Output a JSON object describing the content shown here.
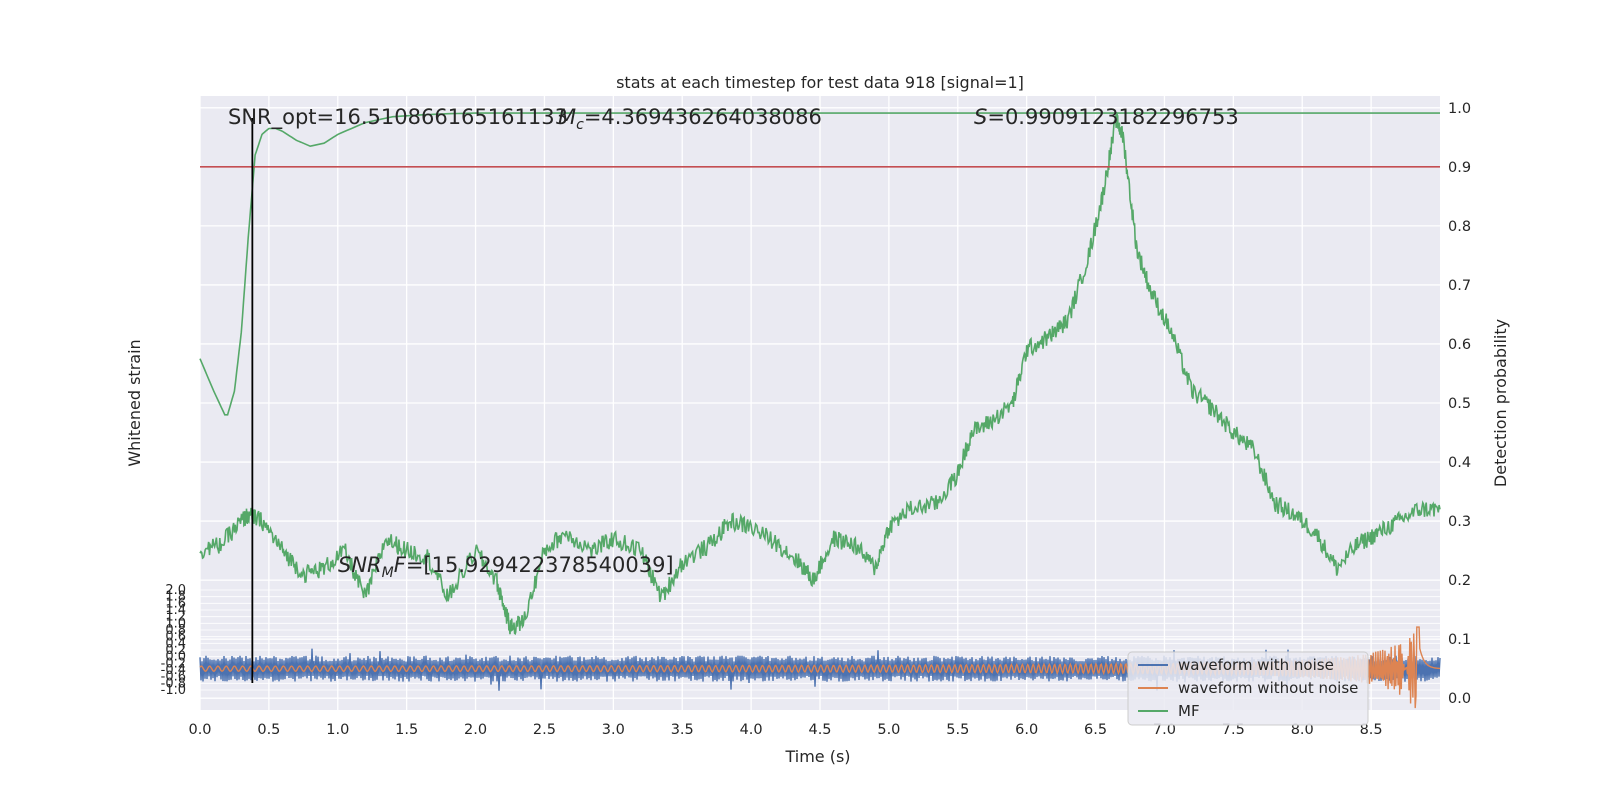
{
  "chart_data": {
    "type": "line",
    "title": "stats at each timestep for test data 918 [signal=1]",
    "xlabel": "Time (s)",
    "ylabel_left": "Whitened strain",
    "ylabel_right": "Detection probability",
    "xlim": [
      0.0,
      9.0
    ],
    "x_ticks": [
      "0.0",
      "0.5",
      "1.0",
      "1.5",
      "2.0",
      "2.5",
      "3.0",
      "3.5",
      "4.0",
      "4.5",
      "5.0",
      "5.5",
      "6.0",
      "6.5",
      "7.0",
      "7.5",
      "8.0",
      "8.5"
    ],
    "y_right_lim": [
      -0.02,
      1.02
    ],
    "y_right_ticks": [
      "0.0",
      "0.1",
      "0.2",
      "0.3",
      "0.4",
      "0.5",
      "0.6",
      "0.7",
      "0.8",
      "0.9",
      "1.0"
    ],
    "y_left_ticks": [
      "2.0",
      "1.8",
      "1.6",
      "1.4",
      "1.2",
      "1.0",
      "0.8",
      "0.6",
      "0.4",
      "0.2",
      "0.0",
      "-0.2",
      "-0.4",
      "-0.6",
      "-0.8",
      "-1.0"
    ],
    "grid": true,
    "annotations": {
      "snr_opt": "SNR_opt=16.510866165161133",
      "mc_symbol": "M",
      "mc_sub": "c",
      "mc_value": "=4.369436264038086",
      "s_symbol": "S",
      "s_value": "=0.9909123182296753",
      "snr_mf_symbol": "SNR",
      "snr_mf_sub": "M",
      "snr_mf_tail": "F",
      "snr_mf_value": "=[15.929422378540039]"
    },
    "threshold": {
      "y": 0.9,
      "color": "#c44e52"
    },
    "marker_line_x": 0.38,
    "legend": {
      "placement": "lower-right",
      "entries": [
        "waveform with noise",
        "waveform without noise",
        "MF"
      ]
    },
    "series": [
      {
        "name": "waveform with noise",
        "color": "#4c72b0",
        "kind": "noise",
        "center": 0.05,
        "amplitude": 0.022
      },
      {
        "name": "waveform without noise",
        "color": "#dd8452",
        "kind": "chirp",
        "center": 0.05,
        "merger_time": 8.85
      },
      {
        "name": "MF",
        "color": "#55a868",
        "kind": "line",
        "x": [
          0.0,
          0.1,
          0.18,
          0.2,
          0.25,
          0.3,
          0.35,
          0.4,
          0.45,
          0.5,
          0.55,
          0.6,
          0.7,
          0.8,
          0.9,
          1.0,
          1.2,
          1.4,
          1.6,
          1.8,
          2.0,
          2.5,
          3.0,
          4.0,
          5.0,
          6.0,
          6.5,
          6.65,
          7.0,
          8.0,
          9.0
        ],
        "y": [
          0.575,
          0.52,
          0.48,
          0.48,
          0.52,
          0.62,
          0.78,
          0.92,
          0.955,
          0.965,
          0.965,
          0.96,
          0.945,
          0.935,
          0.94,
          0.955,
          0.975,
          0.985,
          0.988,
          0.99,
          0.991,
          0.991,
          0.991,
          0.991,
          0.991,
          0.991,
          0.991,
          0.991,
          0.991,
          0.991,
          0.991
        ]
      },
      {
        "name": "detection probability",
        "color": "#55a868",
        "kind": "line",
        "x": [
          0.0,
          0.15,
          0.3,
          0.35,
          0.45,
          0.6,
          0.75,
          0.9,
          1.05,
          1.2,
          1.35,
          1.5,
          1.65,
          1.8,
          2.0,
          2.15,
          2.25,
          2.35,
          2.5,
          2.65,
          2.85,
          3.0,
          3.2,
          3.35,
          3.5,
          3.7,
          3.85,
          4.0,
          4.2,
          4.35,
          4.45,
          4.6,
          4.75,
          4.9,
          5.0,
          5.15,
          5.35,
          5.5,
          5.6,
          5.75,
          5.9,
          6.0,
          6.15,
          6.3,
          6.45,
          6.55,
          6.65,
          6.7,
          6.8,
          6.9,
          7.05,
          7.2,
          7.35,
          7.5,
          7.65,
          7.8,
          7.95,
          8.1,
          8.25,
          8.4,
          8.55,
          8.7,
          8.85,
          9.0
        ],
        "y": [
          0.25,
          0.26,
          0.3,
          0.31,
          0.3,
          0.25,
          0.21,
          0.22,
          0.25,
          0.17,
          0.27,
          0.25,
          0.24,
          0.17,
          0.25,
          0.2,
          0.12,
          0.13,
          0.25,
          0.28,
          0.25,
          0.27,
          0.25,
          0.17,
          0.23,
          0.26,
          0.3,
          0.29,
          0.26,
          0.23,
          0.2,
          0.27,
          0.26,
          0.22,
          0.29,
          0.32,
          0.33,
          0.38,
          0.45,
          0.47,
          0.5,
          0.59,
          0.61,
          0.64,
          0.75,
          0.85,
          0.98,
          0.95,
          0.76,
          0.69,
          0.62,
          0.52,
          0.49,
          0.45,
          0.42,
          0.33,
          0.31,
          0.28,
          0.22,
          0.26,
          0.28,
          0.3,
          0.32,
          0.32
        ]
      }
    ]
  }
}
